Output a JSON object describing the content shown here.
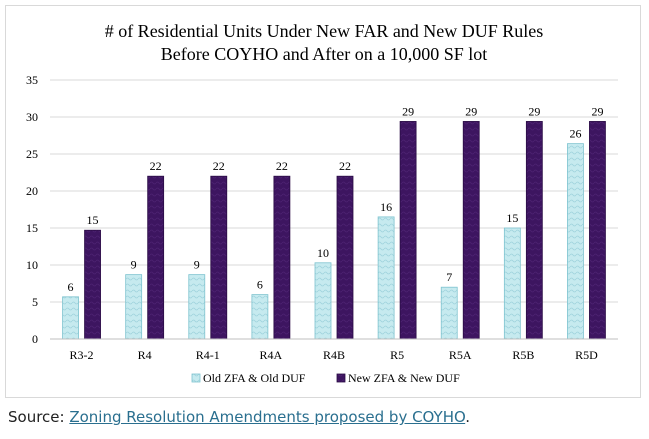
{
  "chart_data": {
    "type": "bar",
    "title": [
      "# of Residential Units Under New FAR and New DUF Rules",
      "Before COYHO and After on a 10,000 SF lot"
    ],
    "categories": [
      "R3-2",
      "R4",
      "R4-1",
      "R4A",
      "R4B",
      "R5",
      "R5A",
      "R5B",
      "R5D"
    ],
    "series": [
      {
        "name": "Old ZFA & Old DUF",
        "values": [
          5.7,
          8.7,
          8.7,
          6.0,
          10.3,
          16.5,
          7.0,
          15.0,
          26.4
        ],
        "labels": [
          "6",
          "9",
          "9",
          "6",
          "10",
          "16",
          "7",
          "15",
          "26"
        ],
        "color": "#bfe6ec"
      },
      {
        "name": "New ZFA & New DUF",
        "values": [
          14.7,
          22.0,
          22.0,
          22.0,
          22.0,
          29.4,
          29.4,
          29.4,
          29.4
        ],
        "labels": [
          "15",
          "22",
          "22",
          "22",
          "22",
          "29",
          "29",
          "29",
          "29"
        ],
        "color": "#3d1560"
      }
    ],
    "ylim": [
      0,
      35
    ],
    "yticks": [
      0,
      5,
      10,
      15,
      20,
      25,
      30,
      35
    ],
    "grid": true,
    "legend_position": "bottom"
  },
  "source": {
    "prefix": "Source: ",
    "link_text": "Zoning Resolution Amendments proposed by COYHO",
    "suffix": "."
  }
}
